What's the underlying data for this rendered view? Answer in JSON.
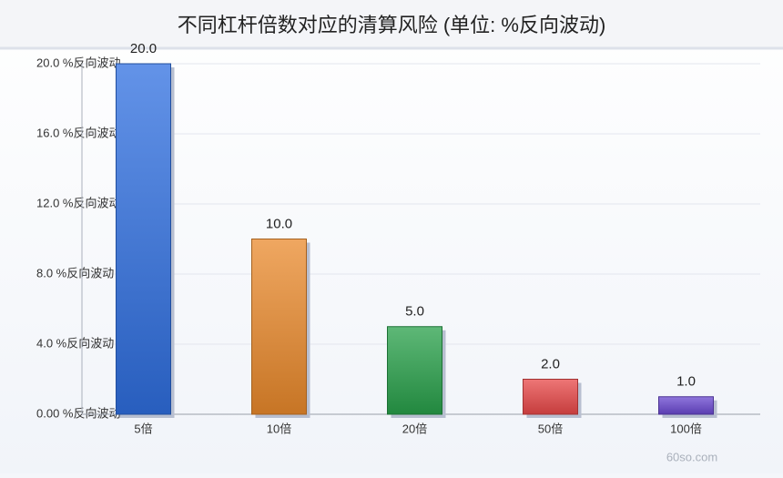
{
  "chart_data": {
    "type": "bar",
    "title": "不同杠杆倍数对应的清算风险 (单位: %反向波动)",
    "categories": [
      "5倍",
      "10倍",
      "20倍",
      "50倍",
      "100倍"
    ],
    "values": [
      20,
      10,
      5,
      2,
      1
    ],
    "value_labels": [
      "20.0",
      "10.0",
      "5.0",
      "2.0",
      "1.0"
    ],
    "colors": [
      "#2f6fe0",
      "#ea8a2c",
      "#28a04a",
      "#e84848",
      "#6a48d0"
    ],
    "ylim": [
      0,
      20
    ],
    "yticks": [
      {
        "value": 0,
        "label": "0.00 %反向波动"
      },
      {
        "value": 4,
        "label": "4.0 %反向波动"
      },
      {
        "value": 8,
        "label": "8.0 %反向波动"
      },
      {
        "value": 12,
        "label": "12.0 %反向波动"
      },
      {
        "value": 16,
        "label": "16.0 %反向波动"
      },
      {
        "value": 20,
        "label": "20.0 %反向波动"
      }
    ],
    "grid": true,
    "watermark": "60so.com"
  }
}
